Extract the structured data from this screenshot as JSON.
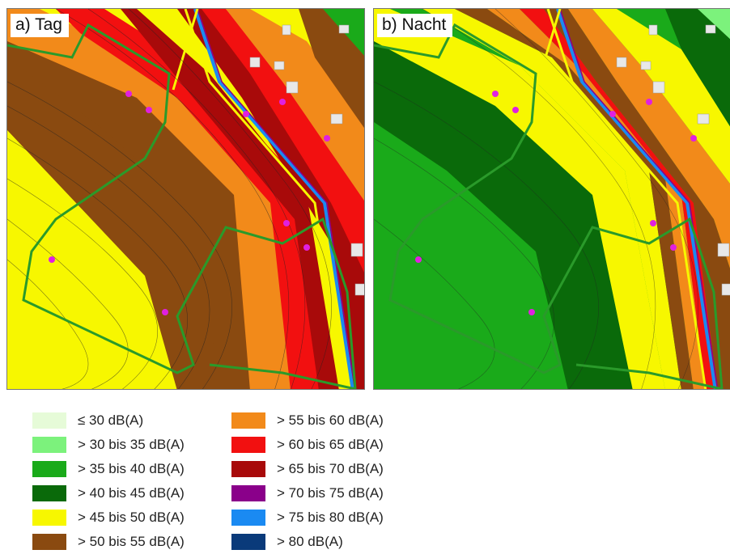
{
  "panels": {
    "day": {
      "label": "a) Tag"
    },
    "night": {
      "label": "b) Nacht"
    }
  },
  "legend": {
    "items": [
      {
        "label": "≤ 30 dB(A)",
        "color": "#e6fbd8"
      },
      {
        "label": "> 30 bis 35 dB(A)",
        "color": "#7cf27c"
      },
      {
        "label": "> 35 bis 40 dB(A)",
        "color": "#1aaa1a"
      },
      {
        "label": "> 40 bis 45 dB(A)",
        "color": "#0a6a0a"
      },
      {
        "label": "> 45 bis 50 dB(A)",
        "color": "#f7f700"
      },
      {
        "label": "> 50 bis 55 dB(A)",
        "color": "#8a4a10"
      },
      {
        "label": "> 55 bis 60 dB(A)",
        "color": "#f28a1a"
      },
      {
        "label": "> 60 bis 65 dB(A)",
        "color": "#f21010"
      },
      {
        "label": "> 65 bis 70 dB(A)",
        "color": "#a80a0a"
      },
      {
        "label": "> 70 bis 75 dB(A)",
        "color": "#8a008a"
      },
      {
        "label": "> 75 bis 80 dB(A)",
        "color": "#1a8af2"
      },
      {
        "label": "> 80 dB(A)",
        "color": "#0a3a7a"
      }
    ]
  }
}
